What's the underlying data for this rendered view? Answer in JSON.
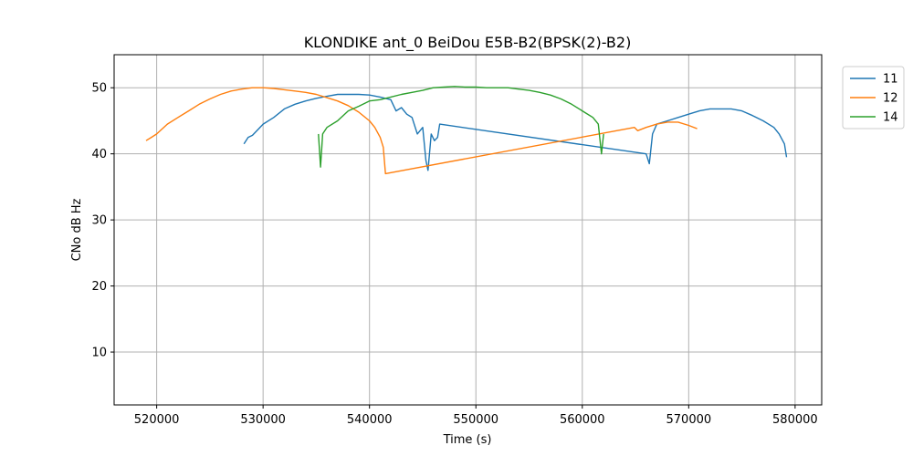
{
  "chart_data": {
    "type": "line",
    "title": "KLONDIKE ant_0 BeiDou E5B-B2(BPSK(2)-B2)",
    "xlabel": "Time (s)",
    "ylabel": "CNo dB Hz",
    "xlim": [
      516000,
      582500
    ],
    "ylim": [
      2,
      55
    ],
    "xticks": [
      520000,
      530000,
      540000,
      550000,
      560000,
      570000,
      580000
    ],
    "xtick_labels": [
      "520000",
      "530000",
      "540000",
      "550000",
      "560000",
      "570000",
      "580000"
    ],
    "yticks": [
      10,
      20,
      30,
      40,
      50
    ],
    "ytick_labels": [
      "10",
      "20",
      "30",
      "40",
      "50"
    ],
    "grid": true,
    "legend_position": "outside-top-right",
    "series": [
      {
        "name": "11",
        "color": "#1f77b4",
        "x": [
          528200,
          528600,
          529000,
          530000,
          531000,
          532000,
          533000,
          534000,
          535000,
          536000,
          537000,
          538000,
          539000,
          540000,
          541000,
          542000,
          542500,
          543000,
          543500,
          544000,
          544500,
          545000,
          545300,
          545500,
          545800,
          546100,
          546400,
          546600,
          566000,
          566300,
          566600,
          567000,
          568000,
          569000,
          570000,
          571000,
          572000,
          573000,
          574000,
          575000,
          576000,
          577000,
          578000,
          578500,
          579000,
          579200
        ],
        "y": [
          41.5,
          42.5,
          42.8,
          44.5,
          45.5,
          46.8,
          47.5,
          48,
          48.4,
          48.7,
          49,
          49,
          49,
          48.9,
          48.6,
          48.2,
          46.5,
          47,
          46,
          45.5,
          43,
          44,
          39,
          37.5,
          43,
          42,
          42.5,
          44.5,
          40,
          38.5,
          43,
          44.5,
          45,
          45.5,
          46,
          46.5,
          46.8,
          46.8,
          46.8,
          46.5,
          45.8,
          45,
          44,
          43,
          41.5,
          39.5
        ]
      },
      {
        "name": "12",
        "color": "#ff7f0e",
        "x": [
          519000,
          519500,
          520000,
          521000,
          522000,
          523000,
          524000,
          525000,
          526000,
          527000,
          528000,
          529000,
          530000,
          531000,
          532000,
          533000,
          534000,
          535000,
          536000,
          537000,
          538000,
          539000,
          540000,
          540500,
          541000,
          541300,
          541500,
          564900,
          565200,
          566000,
          567000,
          568000,
          569000,
          570000,
          570800
        ],
        "y": [
          42,
          42.5,
          43,
          44.5,
          45.5,
          46.5,
          47.5,
          48.3,
          49,
          49.5,
          49.8,
          50,
          50,
          49.9,
          49.7,
          49.5,
          49.3,
          49,
          48.5,
          48,
          47.3,
          46.3,
          45,
          44,
          42.5,
          41,
          37,
          44,
          43.5,
          44,
          44.5,
          44.8,
          44.8,
          44.3,
          43.8
        ]
      },
      {
        "name": "14",
        "color": "#2ca02c",
        "x": [
          535200,
          535400,
          535600,
          536000,
          537000,
          538000,
          539000,
          540000,
          541000,
          542000,
          543000,
          544000,
          545000,
          546000,
          547000,
          548000,
          549000,
          550000,
          551000,
          552000,
          553000,
          554000,
          555000,
          556000,
          557000,
          558000,
          559000,
          560000,
          561000,
          561500,
          561800,
          562000
        ],
        "y": [
          43,
          38,
          43,
          44,
          45,
          46.5,
          47.2,
          48,
          48.2,
          48.6,
          49,
          49.3,
          49.6,
          50,
          50.1,
          50.2,
          50.1,
          50.1,
          50,
          50,
          50,
          49.8,
          49.6,
          49.3,
          48.9,
          48.3,
          47.5,
          46.5,
          45.5,
          44.5,
          40,
          43
        ]
      }
    ]
  }
}
